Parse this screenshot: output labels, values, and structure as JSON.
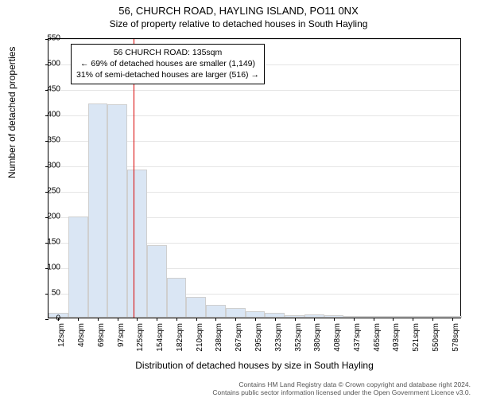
{
  "title_main": "56, CHURCH ROAD, HAYLING ISLAND, PO11 0NX",
  "title_sub": "Size of property relative to detached houses in South Hayling",
  "y_axis_label": "Number of detached properties",
  "x_axis_label": "Distribution of detached houses by size in South Hayling",
  "histogram": {
    "type": "histogram",
    "bar_fill": "#dae6f4",
    "bar_border": "#cfcfcf",
    "grid_color": "#e5e5e5",
    "background": "#ffffff",
    "x_ticks": [
      "12sqm",
      "40sqm",
      "69sqm",
      "97sqm",
      "125sqm",
      "154sqm",
      "182sqm",
      "210sqm",
      "238sqm",
      "267sqm",
      "295sqm",
      "323sqm",
      "352sqm",
      "380sqm",
      "408sqm",
      "437sqm",
      "465sqm",
      "493sqm",
      "521sqm",
      "550sqm",
      "578sqm"
    ],
    "y_ticks": [
      0,
      50,
      100,
      150,
      200,
      250,
      300,
      350,
      400,
      450,
      500,
      550
    ],
    "ylim": [
      0,
      550
    ],
    "values": [
      10,
      198,
      420,
      418,
      290,
      142,
      78,
      40,
      25,
      18,
      12,
      10,
      5,
      6,
      4,
      3,
      2,
      2,
      1,
      1,
      1
    ],
    "ref_line": {
      "x_index": 4.33,
      "color": "#d80000"
    }
  },
  "info_box": {
    "line1": "56 CHURCH ROAD: 135sqm",
    "line2": "← 69% of detached houses are smaller (1,149)",
    "line3": "31% of semi-detached houses are larger (516) →"
  },
  "footer": {
    "line1": "Contains HM Land Registry data © Crown copyright and database right 2024.",
    "line2": "Contains public sector information licensed under the Open Government Licence v3.0."
  }
}
